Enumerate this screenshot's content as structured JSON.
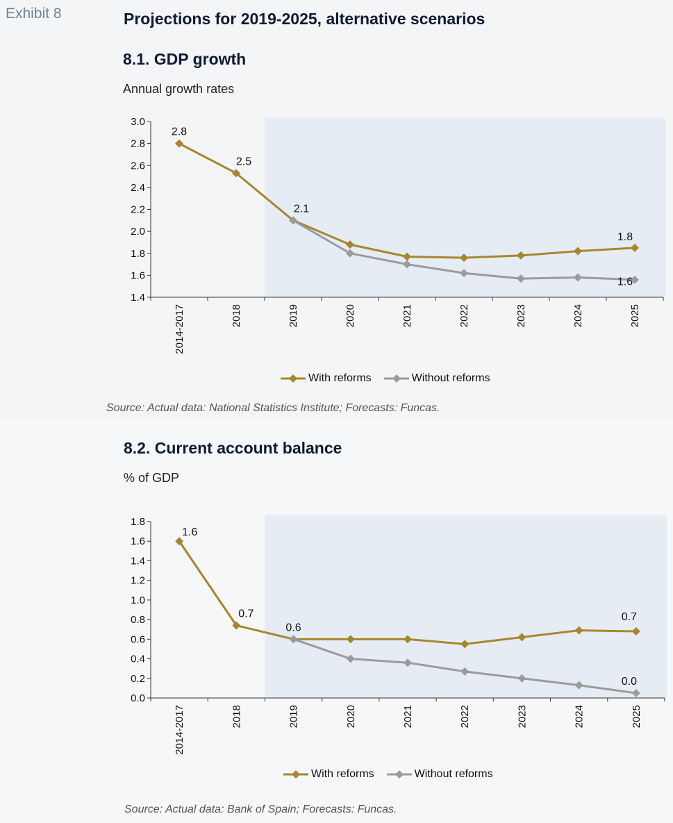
{
  "exhibit_label": "Exhibit 8",
  "main_title": "Projections for 2019-2025, alternative scenarios",
  "colors": {
    "with_reforms": "#a7862e",
    "without_reforms": "#9b9b9b",
    "forecast_shade": "#e6ecf4",
    "axis": "#333333"
  },
  "chart_data": [
    {
      "type": "line",
      "title": "8.1. GDP growth",
      "subtitle": "Annual growth rates",
      "source": "Source: Actual data: National Statistics Institute; Forecasts: Funcas.",
      "categories": [
        "2014-2017",
        "2018",
        "2019",
        "2020",
        "2021",
        "2022",
        "2023",
        "2024",
        "2025"
      ],
      "ylim": [
        1.4,
        3.0
      ],
      "yticks": [
        "3.0",
        "2.8",
        "2.6",
        "2.4",
        "2.2",
        "2.0",
        "1.8",
        "1.6",
        "1.4"
      ],
      "shaded_from_category": "2019",
      "series": [
        {
          "name": "With reforms",
          "values": [
            2.8,
            2.53,
            2.1,
            1.88,
            1.77,
            1.76,
            1.78,
            1.82,
            1.85
          ]
        },
        {
          "name": "Without reforms",
          "values": [
            null,
            null,
            2.1,
            1.8,
            1.7,
            1.62,
            1.57,
            1.58,
            1.56
          ]
        }
      ],
      "data_labels": [
        {
          "series": 0,
          "index": 0,
          "text": "2.8"
        },
        {
          "series": 0,
          "index": 1,
          "text": "2.5"
        },
        {
          "series": 0,
          "index": 2,
          "text": "2.1"
        },
        {
          "series": 0,
          "index": 8,
          "text": "1.8"
        },
        {
          "series": 1,
          "index": 8,
          "text": "1.6"
        }
      ],
      "legend": [
        "With reforms",
        "Without reforms"
      ],
      "legend_position": "bottom-center",
      "grid": false
    },
    {
      "type": "line",
      "title": "8.2. Current account balance",
      "subtitle": "% of GDP",
      "source": "Source: Actual data: Bank of Spain; Forecasts: Funcas.",
      "categories": [
        "2014-2017",
        "2018",
        "2019",
        "2020",
        "2021",
        "2022",
        "2023",
        "2024",
        "2025"
      ],
      "ylim": [
        0.0,
        1.8
      ],
      "yticks": [
        "1.8",
        "1.6",
        "1.4",
        "1.2",
        "1.0",
        "0.8",
        "0.6",
        "0.4",
        "0.2",
        "0.0"
      ],
      "shaded_from_category": "2019",
      "series": [
        {
          "name": "With reforms",
          "values": [
            1.6,
            0.74,
            0.6,
            0.6,
            0.6,
            0.55,
            0.62,
            0.69,
            0.68
          ]
        },
        {
          "name": "Without reforms",
          "values": [
            null,
            null,
            0.6,
            0.4,
            0.36,
            0.27,
            0.2,
            0.13,
            0.05
          ]
        }
      ],
      "data_labels": [
        {
          "series": 0,
          "index": 0,
          "text": "1.6"
        },
        {
          "series": 0,
          "index": 1,
          "text": "0.7"
        },
        {
          "series": 0,
          "index": 2,
          "text": "0.6"
        },
        {
          "series": 0,
          "index": 8,
          "text": "0.7"
        },
        {
          "series": 1,
          "index": 8,
          "text": "0.0"
        }
      ],
      "legend": [
        "With reforms",
        "Without reforms"
      ],
      "legend_position": "bottom-center",
      "grid": false
    }
  ]
}
